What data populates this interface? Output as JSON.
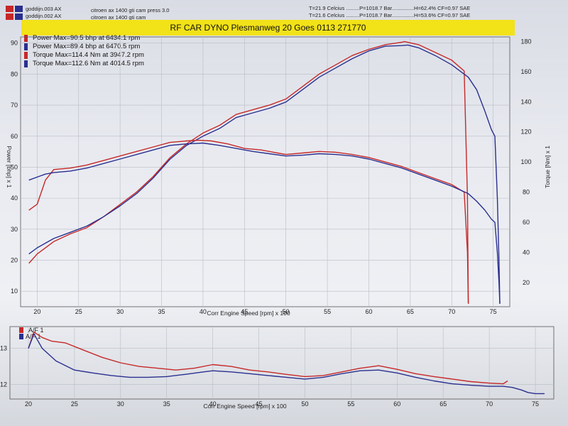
{
  "header": {
    "run1": {
      "file": "goddijn.003 AX",
      "desc": "citroen ax 1400 gti cam press 3.0",
      "conditions": "T=21.9 Celcius .........P=1018.7 Bar...............H=62.4% CF=0.97 SAE"
    },
    "run2": {
      "file": "goddijn.002 AX",
      "desc": "citroen ax 1400 gti cam",
      "conditions": "T=21.6 Celcius .........P=1018.7 Bar...............H=53.6% CF=0.97 SAE"
    },
    "title": "RF CAR DYNO  Plesmanweg 20 Goes   0113 271770"
  },
  "legend": [
    "Power Max=90.5 bhp at 6434.1 rpm",
    "Power Max=89.4 bhp at 6470.5 rpm",
    "Torque  Max=114.4 Nm at 3947.2 rpm",
    "Torque  Max=112.6 Nm at 4014.5 rpm"
  ],
  "colors": {
    "run1": "#c62828",
    "run2": "#2a2f8f",
    "grid": "#b9bcc4"
  },
  "chart_data": [
    {
      "type": "line",
      "xlabel": "Corr Engine Speed [rpm] x 100",
      "ylabel": "Power [bhp] x 1",
      "y2label": "Torque [Nm] x 1",
      "xlim": [
        18,
        77
      ],
      "ylim": [
        5,
        92
      ],
      "y2lim": [
        4,
        183
      ],
      "x_ticks": [
        20,
        25,
        30,
        35,
        40,
        45,
        50,
        55,
        60,
        65,
        70,
        75
      ],
      "y_ticks": [
        10,
        20,
        30,
        40,
        50,
        60,
        70,
        80,
        90
      ],
      "y2_ticks": [
        20,
        40,
        60,
        80,
        100,
        120,
        140,
        160,
        180
      ],
      "grid": true,
      "series": [
        {
          "name": "Power Max=90.5 bhp at 6434.1 rpm",
          "axis": "left",
          "color": "#c62828",
          "x": [
            19,
            20,
            22,
            24,
            26,
            28,
            30,
            32,
            34,
            36,
            38,
            40,
            42,
            44,
            46,
            48,
            50,
            52,
            54,
            56,
            58,
            60,
            62,
            64,
            64.3,
            66,
            68,
            70,
            71.5,
            71.9,
            72
          ],
          "y": [
            19,
            22,
            26,
            28.5,
            30.5,
            34,
            38,
            42,
            47,
            53,
            57.5,
            61,
            63.5,
            67,
            68.5,
            70,
            72,
            76,
            80,
            83,
            86,
            88,
            89.5,
            90.3,
            90.5,
            89.5,
            87,
            84.5,
            81,
            40,
            6
          ]
        },
        {
          "name": "Power Max=89.4 bhp at 6470.5 rpm",
          "axis": "left",
          "color": "#2a2f8f",
          "x": [
            19,
            20,
            22,
            24,
            26,
            28,
            30,
            32,
            34,
            36,
            38,
            40,
            42,
            44,
            46,
            48,
            50,
            52,
            54,
            56,
            58,
            60,
            62,
            64,
            64.7,
            66,
            68,
            70,
            72,
            73,
            74,
            74.8,
            75.2,
            75.5,
            75.7,
            75.8
          ],
          "y": [
            22,
            24,
            27,
            29,
            31,
            34,
            37.5,
            41.5,
            46.5,
            52.5,
            57,
            60,
            62.5,
            66,
            67.5,
            69,
            71,
            75,
            79,
            82,
            85,
            87.5,
            89,
            89.2,
            89.4,
            88.5,
            86,
            83,
            79,
            75,
            68,
            62,
            60,
            40,
            20,
            6
          ]
        },
        {
          "name": "Torque  Max=114.4 Nm at 3947.2 rpm",
          "axis": "right",
          "color": "#c62828",
          "x": [
            19,
            20,
            21,
            22,
            24,
            26,
            28,
            30,
            32,
            34,
            36,
            38,
            39.5,
            41,
            43,
            45,
            47,
            49,
            50,
            52,
            54,
            56,
            58,
            60,
            62,
            64,
            66,
            68,
            70,
            71.5,
            71.9,
            72
          ],
          "y": [
            68,
            72,
            88,
            95,
            96,
            98,
            101,
            104,
            107,
            110,
            113,
            114,
            114.4,
            114,
            112,
            109,
            108,
            106,
            105,
            106,
            107,
            106.5,
            105,
            103,
            100,
            97,
            93,
            89,
            85,
            80,
            40,
            6
          ]
        },
        {
          "name": "Torque  Max=112.6 Nm at 4014.5 rpm",
          "axis": "right",
          "color": "#2a2f8f",
          "x": [
            19,
            20,
            21,
            22,
            24,
            26,
            28,
            30,
            32,
            34,
            36,
            38,
            40,
            42,
            44,
            46,
            48,
            50,
            52,
            54,
            56,
            58,
            60,
            62,
            64,
            66,
            68,
            70,
            72,
            73,
            74,
            74.8,
            75.2,
            75.5,
            75.7,
            75.8
          ],
          "y": [
            88,
            90,
            92,
            93,
            94,
            96,
            99,
            102,
            105,
            108,
            111,
            112,
            112.6,
            111,
            109,
            107,
            105.5,
            104,
            104.5,
            105.5,
            105,
            104,
            102,
            99,
            96,
            92,
            88,
            84,
            79,
            74,
            68,
            62,
            60,
            40,
            20,
            6
          ]
        }
      ]
    },
    {
      "type": "line",
      "xlabel": "Corr Engine Speed [rpm] x 100",
      "xlim": [
        18,
        77
      ],
      "ylim": [
        11.6,
        13.6
      ],
      "x_ticks": [
        20,
        25,
        30,
        35,
        40,
        45,
        50,
        55,
        60,
        65,
        70,
        75
      ],
      "y_ticks": [
        12,
        13
      ],
      "grid": true,
      "series": [
        {
          "name": "A/F 1",
          "color": "#c62828",
          "x": [
            20,
            20.6,
            21.5,
            22.5,
            24,
            26,
            28,
            30,
            32,
            34,
            36,
            38,
            40,
            42,
            44,
            46,
            48,
            50,
            52,
            54,
            56,
            58,
            60,
            62,
            64,
            66,
            68,
            70,
            71.5,
            72
          ],
          "y": [
            13.0,
            13.45,
            13.3,
            13.2,
            13.15,
            12.95,
            12.75,
            12.6,
            12.5,
            12.45,
            12.4,
            12.45,
            12.55,
            12.5,
            12.4,
            12.35,
            12.28,
            12.22,
            12.25,
            12.35,
            12.45,
            12.52,
            12.42,
            12.3,
            12.22,
            12.15,
            12.08,
            12.04,
            12.02,
            12.1
          ]
        },
        {
          "name": "A/F 1",
          "color": "#2a2f8f",
          "x": [
            20,
            20.6,
            21.5,
            23,
            25,
            27,
            29,
            31,
            33,
            35,
            37,
            39,
            40,
            42,
            44,
            46,
            48,
            50,
            52,
            54,
            56,
            58,
            60,
            62,
            64,
            66,
            68,
            70,
            71.5,
            72.5,
            73.5,
            74.2,
            75,
            76
          ],
          "y": [
            13.0,
            13.4,
            13.0,
            12.65,
            12.4,
            12.32,
            12.25,
            12.2,
            12.2,
            12.22,
            12.28,
            12.35,
            12.38,
            12.35,
            12.3,
            12.25,
            12.2,
            12.15,
            12.2,
            12.3,
            12.38,
            12.4,
            12.32,
            12.2,
            12.1,
            12.02,
            11.98,
            11.95,
            11.95,
            11.92,
            11.85,
            11.78,
            11.75,
            11.75
          ]
        }
      ]
    }
  ]
}
